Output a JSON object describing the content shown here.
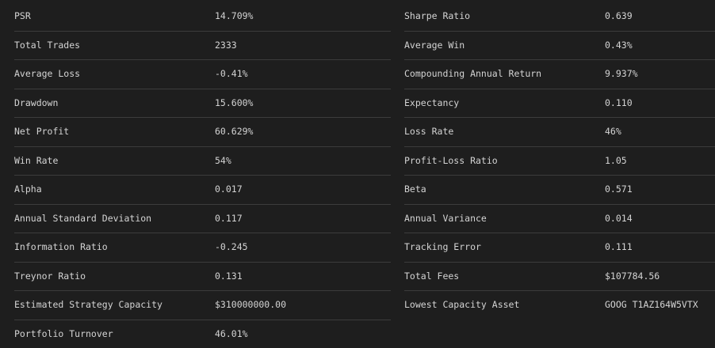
{
  "stats": [
    {
      "l1": "PSR",
      "v1": "14.709%",
      "l2": "Sharpe Ratio",
      "v2": "0.639"
    },
    {
      "l1": "Total Trades",
      "v1": "2333",
      "l2": "Average Win",
      "v2": "0.43%"
    },
    {
      "l1": "Average Loss",
      "v1": "-0.41%",
      "l2": "Compounding Annual Return",
      "v2": "9.937%"
    },
    {
      "l1": "Drawdown",
      "v1": "15.600%",
      "l2": "Expectancy",
      "v2": "0.110"
    },
    {
      "l1": "Net Profit",
      "v1": "60.629%",
      "l2": "Loss Rate",
      "v2": "46%"
    },
    {
      "l1": "Win Rate",
      "v1": "54%",
      "l2": "Profit-Loss Ratio",
      "v2": "1.05"
    },
    {
      "l1": "Alpha",
      "v1": "0.017",
      "l2": "Beta",
      "v2": "0.571"
    },
    {
      "l1": "Annual Standard Deviation",
      "v1": "0.117",
      "l2": "Annual Variance",
      "v2": "0.014"
    },
    {
      "l1": "Information Ratio",
      "v1": "-0.245",
      "l2": "Tracking Error",
      "v2": "0.111"
    },
    {
      "l1": "Treynor Ratio",
      "v1": "0.131",
      "l2": "Total Fees",
      "v2": "$107784.56"
    },
    {
      "l1": "Estimated Strategy Capacity",
      "v1": "$310000000.00",
      "l2": "Lowest Capacity Asset",
      "v2": "GOOG T1AZ164W5VTX"
    },
    {
      "l1": "Portfolio Turnover",
      "v1": "46.01%",
      "l2": "",
      "v2": ""
    }
  ]
}
